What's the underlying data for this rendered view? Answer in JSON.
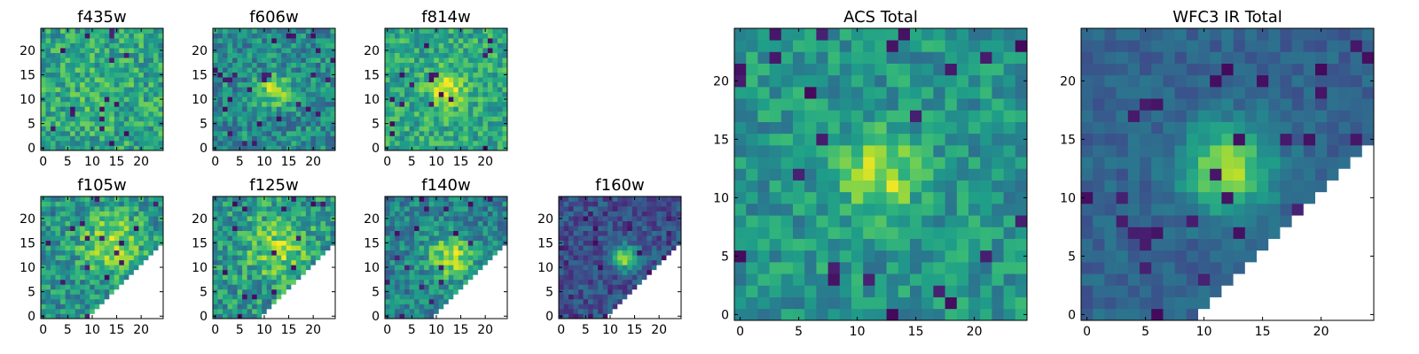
{
  "figure": {
    "description_of_visible_content": "",
    "colormap": "viridis",
    "colors": {
      "viridis_stops": [
        "#440154",
        "#482878",
        "#3e4989",
        "#31688e",
        "#26828e",
        "#1f9e89",
        "#35b779",
        "#6ece58",
        "#b5de2b",
        "#fde725"
      ],
      "missing_pixel": "#ffffff",
      "axes_frame": "#000000"
    }
  },
  "chart_data": [
    {
      "type": "heatmap",
      "title": "f435w",
      "grid_size": 25,
      "xlim": [
        -0.5,
        24.5
      ],
      "ylim": [
        -0.5,
        24.5
      ],
      "xticks": [
        0,
        5,
        10,
        15,
        20
      ],
      "yticks": [
        0,
        5,
        10,
        15,
        20
      ],
      "pattern": "noise",
      "center": [
        11,
        12
      ],
      "sigma": 5,
      "amplitude": 0.06,
      "base": 0.58,
      "noise": 0.2,
      "dark_fraction": 0.03,
      "gamma": 1.0,
      "masked_region": "none",
      "mask_diagonal": null,
      "seed": 11
    },
    {
      "type": "heatmap",
      "title": "f606w",
      "grid_size": 25,
      "xlim": [
        -0.5,
        24.5
      ],
      "ylim": [
        -0.5,
        24.5
      ],
      "xticks": [
        0,
        5,
        10,
        15,
        20
      ],
      "yticks": [
        0,
        5,
        10,
        15,
        20
      ],
      "pattern": "source",
      "center": [
        12,
        12
      ],
      "sigma": 2.2,
      "amplitude": 0.42,
      "base": 0.48,
      "noise": 0.2,
      "dark_fraction": 0.04,
      "gamma": 1.0,
      "masked_region": "none",
      "mask_diagonal": null,
      "seed": 23
    },
    {
      "type": "heatmap",
      "title": "f814w",
      "grid_size": 25,
      "xlim": [
        -0.5,
        24.5
      ],
      "ylim": [
        -0.5,
        24.5
      ],
      "xticks": [
        0,
        5,
        10,
        15,
        20
      ],
      "yticks": [
        0,
        5,
        10,
        15,
        20
      ],
      "pattern": "source",
      "center": [
        12,
        12
      ],
      "sigma": 2.4,
      "amplitude": 0.38,
      "base": 0.6,
      "noise": 0.18,
      "dark_fraction": 0.03,
      "gamma": 1.0,
      "masked_region": "none",
      "mask_diagonal": null,
      "seed": 37
    },
    {
      "type": "heatmap",
      "title": "f105w",
      "grid_size": 25,
      "xlim": [
        -0.5,
        24.5
      ],
      "ylim": [
        -0.5,
        24.5
      ],
      "xticks": [
        0,
        5,
        10,
        15,
        20
      ],
      "yticks": [
        0,
        5,
        10,
        15,
        20
      ],
      "pattern": "source",
      "center": [
        14,
        15
      ],
      "sigma": 4.5,
      "amplitude": 0.35,
      "base": 0.5,
      "noise": 0.2,
      "dark_fraction": 0.03,
      "gamma": 1.0,
      "masked_region": "lower-right",
      "mask_diagonal": 33,
      "seed": 41
    },
    {
      "type": "heatmap",
      "title": "f125w",
      "grid_size": 25,
      "xlim": [
        -0.5,
        24.5
      ],
      "ylim": [
        -0.5,
        24.5
      ],
      "xticks": [
        0,
        5,
        10,
        15,
        20
      ],
      "yticks": [
        0,
        5,
        10,
        15,
        20
      ],
      "pattern": "source",
      "center": [
        13,
        14
      ],
      "sigma": 4.5,
      "amplitude": 0.3,
      "base": 0.52,
      "noise": 0.22,
      "dark_fraction": 0.04,
      "gamma": 1.0,
      "masked_region": "lower-right",
      "mask_diagonal": 33,
      "seed": 53
    },
    {
      "type": "heatmap",
      "title": "f140w",
      "grid_size": 25,
      "xlim": [
        -0.5,
        24.5
      ],
      "ylim": [
        -0.5,
        24.5
      ],
      "xticks": [
        0,
        5,
        10,
        15,
        20
      ],
      "yticks": [
        0,
        5,
        10,
        15,
        20
      ],
      "pattern": "source",
      "center": [
        13,
        12
      ],
      "sigma": 3.2,
      "amplitude": 0.42,
      "base": 0.45,
      "noise": 0.18,
      "dark_fraction": 0.03,
      "gamma": 1.0,
      "masked_region": "lower-right",
      "mask_diagonal": 33,
      "seed": 67
    },
    {
      "type": "heatmap",
      "title": "f160w",
      "grid_size": 25,
      "xlim": [
        -0.5,
        24.5
      ],
      "ylim": [
        -0.5,
        24.5
      ],
      "xticks": [
        0,
        5,
        10,
        15,
        20
      ],
      "yticks": [
        0,
        5,
        10,
        15,
        20
      ],
      "pattern": "source",
      "center": [
        13,
        12
      ],
      "sigma": 1.8,
      "amplitude": 0.6,
      "base": 0.25,
      "noise": 0.14,
      "dark_fraction": 0.06,
      "gamma": 1.0,
      "masked_region": "lower-right",
      "mask_diagonal": 33,
      "seed": 79
    },
    {
      "type": "heatmap",
      "title": "ACS Total",
      "grid_size": 25,
      "xlim": [
        -0.5,
        24.5
      ],
      "ylim": [
        -0.5,
        24.5
      ],
      "xticks": [
        0,
        5,
        10,
        15,
        20
      ],
      "yticks": [
        0,
        5,
        10,
        15,
        20
      ],
      "pattern": "source",
      "center": [
        12,
        12
      ],
      "sigma": 2.3,
      "amplitude": 0.38,
      "base": 0.52,
      "noise": 0.16,
      "dark_fraction": 0.04,
      "gamma": 1.0,
      "masked_region": "none",
      "mask_diagonal": null,
      "seed": 97
    },
    {
      "type": "heatmap",
      "title": "WFC3 IR Total",
      "grid_size": 25,
      "xlim": [
        -0.5,
        24.5
      ],
      "ylim": [
        -0.5,
        24.5
      ],
      "xticks": [
        0,
        5,
        10,
        15,
        20
      ],
      "yticks": [
        0,
        5,
        10,
        15,
        20
      ],
      "pattern": "source",
      "center": [
        12,
        12.5
      ],
      "sigma": 2.6,
      "amplitude": 0.55,
      "base": 0.32,
      "noise": 0.08,
      "dark_fraction": 0.05,
      "gamma": 1.0,
      "masked_region": "lower-right",
      "mask_diagonal": 33,
      "seed": 101
    }
  ]
}
